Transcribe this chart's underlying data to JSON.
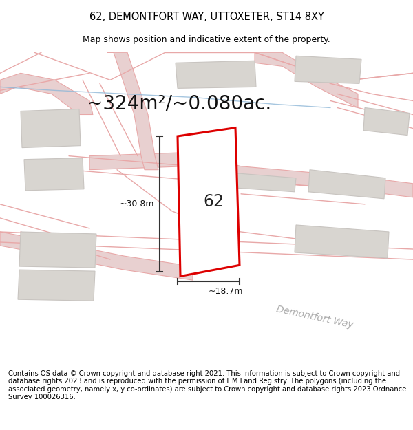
{
  "title_line1": "62, DEMONTFORT WAY, UTTOXETER, ST14 8XY",
  "title_line2": "Map shows position and indicative extent of the property.",
  "area_text": "~324m²/~0.080ac.",
  "plot_number": "62",
  "dim_width": "~18.7m",
  "dim_height": "~30.8m",
  "footer_text": "Contains OS data © Crown copyright and database right 2021. This information is subject to Crown copyright and database rights 2023 and is reproduced with the permission of HM Land Registry. The polygons (including the associated geometry, namely x, y co-ordinates) are subject to Crown copyright and database rights 2023 Ordnance Survey 100026316.",
  "map_bg": "#f7f3f0",
  "road_fill_color": "#e8d0d0",
  "road_line_color": "#e8a8a8",
  "building_color": "#d8d5d0",
  "building_edge_color": "#c8c4c0",
  "plot_outline_color": "#dd0000",
  "street_label": "Demontfort Way",
  "title_fontsize": 10.5,
  "subtitle_fontsize": 9,
  "area_fontsize": 20,
  "plot_label_fontsize": 17,
  "footer_fontsize": 7.2,
  "dim_fontsize": 9,
  "street_fontsize": 10
}
